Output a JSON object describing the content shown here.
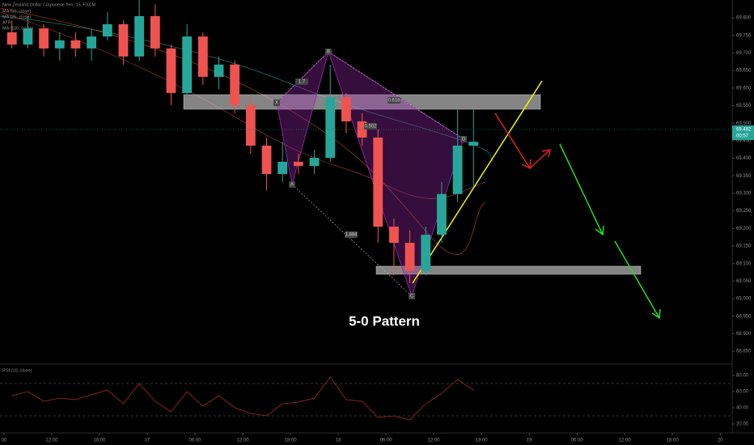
{
  "chart_data": {
    "type": "candlestick",
    "title": "New Zealand Dollar / Japanese Yen, 15, FXCM",
    "legend": [
      "MA (50, close)",
      "MA (25, close)",
      "ATR",
      "MA (100, close)"
    ],
    "x": [
      1,
      3,
      5,
      7,
      9,
      11,
      13,
      15,
      17,
      19,
      21,
      23,
      25,
      27,
      29,
      31,
      33,
      35,
      37,
      39,
      41,
      43,
      45,
      47,
      49,
      51,
      53,
      55,
      57,
      59
    ],
    "open": [
      69.759,
      69.724,
      69.77,
      69.713,
      69.736,
      69.713,
      69.747,
      69.782,
      69.69,
      69.805,
      69.713,
      69.586,
      69.747,
      69.632,
      69.667,
      69.551,
      69.436,
      69.355,
      69.39,
      69.378,
      69.401,
      69.574,
      69.505,
      69.459,
      69.205,
      69.159,
      69.079,
      69.182,
      69.298,
      69.436
    ],
    "high": [
      69.793,
      69.805,
      69.782,
      69.759,
      69.759,
      69.77,
      69.816,
      69.793,
      69.851,
      69.839,
      69.724,
      69.782,
      69.759,
      69.69,
      69.678,
      69.574,
      69.459,
      69.447,
      69.413,
      69.424,
      69.667,
      69.586,
      69.528,
      69.482,
      69.228,
      69.194,
      69.205,
      69.332,
      69.54,
      69.54
    ],
    "low": [
      69.713,
      69.713,
      69.69,
      69.678,
      69.69,
      69.678,
      69.736,
      69.667,
      69.678,
      69.69,
      69.551,
      69.574,
      69.609,
      69.597,
      69.528,
      69.413,
      69.309,
      69.332,
      69.355,
      69.355,
      69.39,
      69.471,
      69.436,
      69.159,
      69.067,
      69.044,
      69.067,
      69.159,
      69.275,
      69.321
    ],
    "close": [
      69.724,
      69.77,
      69.713,
      69.736,
      69.713,
      69.747,
      69.782,
      69.69,
      69.805,
      69.713,
      69.586,
      69.747,
      69.632,
      69.667,
      69.551,
      69.436,
      69.355,
      69.39,
      69.378,
      69.401,
      69.574,
      69.505,
      69.459,
      69.205,
      69.159,
      69.079,
      69.182,
      69.298,
      69.436,
      69.447
    ],
    "up_color": "#26a69a",
    "down_color": "#ef5350",
    "xlim": [
      -0.5,
      91.5
    ],
    "xticks": [
      {
        "value": 0,
        "label": "00"
      },
      {
        "value": 6,
        "label": "12:00"
      },
      {
        "value": 12,
        "label": "18:00"
      },
      {
        "value": 18,
        "label": "17"
      },
      {
        "value": 24,
        "label": "06:00"
      },
      {
        "value": 30,
        "label": "12:00"
      },
      {
        "value": 36,
        "label": "18:00"
      },
      {
        "value": 42,
        "label": "18"
      },
      {
        "value": 48,
        "label": "06:00"
      },
      {
        "value": 54,
        "label": "12:00"
      },
      {
        "value": 60,
        "label": "18:00"
      },
      {
        "value": 66,
        "label": "19"
      },
      {
        "value": 72,
        "label": "06:00"
      },
      {
        "value": 78,
        "label": "12:00"
      },
      {
        "value": 84,
        "label": "18:00"
      },
      {
        "value": 90,
        "label": "20"
      }
    ],
    "ylim": [
      68.818,
      69.851
    ],
    "yticks": [
      {
        "value": 69.8,
        "label": "69.800"
      },
      {
        "value": 69.75,
        "label": "69.750"
      },
      {
        "value": 69.7,
        "label": "69.700"
      },
      {
        "value": 69.65,
        "label": "69.650"
      },
      {
        "value": 69.6,
        "label": "69.600"
      },
      {
        "value": 69.55,
        "label": "69.550"
      },
      {
        "value": 69.5,
        "label": "69.500"
      },
      {
        "value": 69.45,
        "label": "69.450"
      },
      {
        "value": 69.4,
        "label": "69.400"
      },
      {
        "value": 69.35,
        "label": "69.350"
      },
      {
        "value": 69.3,
        "label": "69.300"
      },
      {
        "value": 69.25,
        "label": "69.250"
      },
      {
        "value": 69.2,
        "label": "69.200"
      },
      {
        "value": 69.15,
        "label": "69.150"
      },
      {
        "value": 69.1,
        "label": "69.100"
      },
      {
        "value": 69.05,
        "label": "69.050"
      },
      {
        "value": 69.0,
        "label": "69.000"
      },
      {
        "value": 68.95,
        "label": "68.950"
      },
      {
        "value": 68.9,
        "label": "68.900"
      },
      {
        "value": 68.85,
        "label": "68.850"
      }
    ],
    "last_price": {
      "value": 69.482,
      "label": "69.482"
    },
    "countdown": "00:57",
    "pattern_name": "5-0 Pattern",
    "point_labels": [
      "X",
      "A",
      "B",
      "C",
      "D"
    ],
    "ratio_labels": [
      "1.7",
      "0.618",
      "0.502",
      "1.884"
    ],
    "rsi": {
      "title": "RSI (10, close)",
      "color": "#a52a2a",
      "values": [
        55,
        60,
        48,
        52,
        50,
        56,
        62,
        45,
        70,
        48,
        35,
        60,
        42,
        55,
        40,
        33,
        30,
        45,
        47,
        52,
        78,
        50,
        48,
        28,
        30,
        25,
        45,
        58,
        75,
        62
      ],
      "ylim": [
        11,
        89
      ],
      "yticks": [
        {
          "value": 80,
          "label": "80.00"
        },
        {
          "value": 60,
          "label": "60.00"
        },
        {
          "value": 40,
          "label": "40.00"
        },
        {
          "value": 20,
          "label": "20.00"
        }
      ],
      "levels": [
        70,
        30
      ]
    }
  }
}
